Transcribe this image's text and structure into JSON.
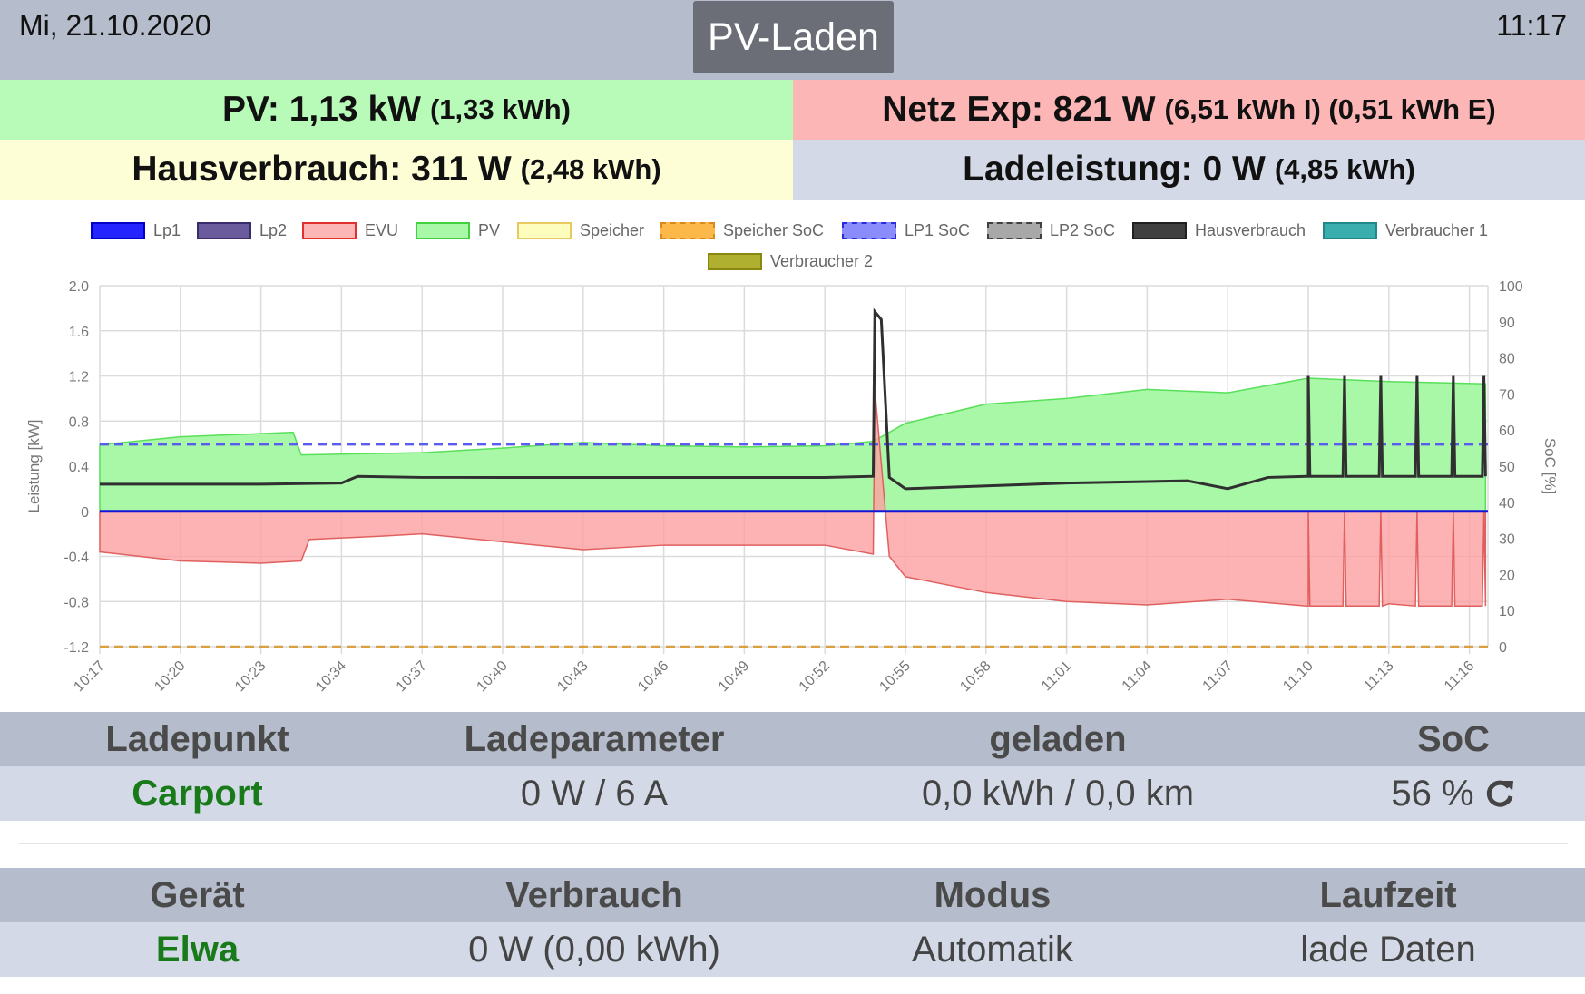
{
  "header": {
    "date": "Mi, 21.10.2020",
    "time": "11:17",
    "mode_button": "PV-Laden"
  },
  "summary": {
    "pv": {
      "label": "PV: 1,13 kW",
      "detail": "(1,33 kWh)",
      "color": "#b8fbb8"
    },
    "grid": {
      "label": "Netz Exp: 821 W",
      "detail": "(6,51 kWh I) (0,51 kWh E)",
      "color": "#fdb6b6"
    },
    "house": {
      "label": "Hausverbrauch: 311 W",
      "detail": "(2,48 kWh)",
      "color": "#fdfdd6"
    },
    "charge": {
      "label": "Ladeleistung: 0 W",
      "detail": "(4,85 kWh)",
      "color": "#d3d9e6"
    }
  },
  "chart_data": {
    "type": "area",
    "legend": [
      {
        "name": "Lp1",
        "color": "#2424ff",
        "border": "#0000c8",
        "dash": false
      },
      {
        "name": "Lp2",
        "color": "#6a5c9c",
        "border": "#3a2c6c",
        "dash": false
      },
      {
        "name": "EVU",
        "color": "#fdb6b6",
        "border": "#e03030",
        "dash": false
      },
      {
        "name": "PV",
        "color": "#a8f8a8",
        "border": "#40d040",
        "dash": false
      },
      {
        "name": "Speicher",
        "color": "#fdfdbe",
        "border": "#e8c860",
        "dash": false
      },
      {
        "name": "Speicher SoC",
        "color": "#fdb84a",
        "border": "#d88a20",
        "dash": true
      },
      {
        "name": "LP1 SoC",
        "color": "#8a8cfc",
        "border": "#2a2ce0",
        "dash": true
      },
      {
        "name": "LP2 SoC",
        "color": "#a8a8a8",
        "border": "#404040",
        "dash": true
      },
      {
        "name": "Hausverbrauch",
        "color": "#404040",
        "border": "#202020",
        "dash": false
      },
      {
        "name": "Verbraucher 1",
        "color": "#3aaeae",
        "border": "#208888",
        "dash": false
      },
      {
        "name": "Verbraucher 2",
        "color": "#b0b030",
        "border": "#888810",
        "dash": false
      }
    ],
    "ylabel_left": "Leistung [kW]",
    "ylabel_right": "SoC [%]",
    "ylim_left": [
      -1.2,
      2.0
    ],
    "yticks_left": [
      "2.0",
      "1.6",
      "1.2",
      "0.8",
      "0.4",
      "0",
      "-0.4",
      "-0.8",
      "-1.2"
    ],
    "ylim_right": [
      0,
      100
    ],
    "yticks_right": [
      "100",
      "90",
      "80",
      "70",
      "60",
      "50",
      "40",
      "30",
      "20",
      "10",
      "0"
    ],
    "xticks": [
      "10:17",
      "10:20",
      "10:23",
      "10:34",
      "10:37",
      "10:40",
      "10:43",
      "10:46",
      "10:49",
      "10:52",
      "10:55",
      "10:58",
      "11:01",
      "11:04",
      "11:07",
      "11:10",
      "11:13",
      "11:16"
    ],
    "x_range_ticks": [
      0,
      17.2
    ],
    "series": [
      {
        "name": "PV",
        "points": [
          [
            0,
            0.59
          ],
          [
            1,
            0.66
          ],
          [
            2.4,
            0.7
          ],
          [
            2.5,
            0.5
          ],
          [
            4,
            0.52
          ],
          [
            5,
            0.56
          ],
          [
            6,
            0.61
          ],
          [
            7,
            0.58
          ],
          [
            8,
            0.57
          ],
          [
            9,
            0.58
          ],
          [
            9.6,
            0.62
          ],
          [
            10,
            0.78
          ],
          [
            11,
            0.95
          ],
          [
            12,
            1.0
          ],
          [
            13,
            1.08
          ],
          [
            14,
            1.05
          ],
          [
            15,
            1.18
          ],
          [
            16,
            1.15
          ],
          [
            17.2,
            1.13
          ]
        ]
      },
      {
        "name": "EVU",
        "points": [
          [
            0,
            -0.36
          ],
          [
            1,
            -0.44
          ],
          [
            2,
            -0.46
          ],
          [
            2.5,
            -0.44
          ],
          [
            2.6,
            -0.25
          ],
          [
            3.5,
            -0.22
          ],
          [
            4,
            -0.2
          ],
          [
            5,
            -0.27
          ],
          [
            6,
            -0.34
          ],
          [
            7,
            -0.3
          ],
          [
            8,
            -0.3
          ],
          [
            9,
            -0.3
          ],
          [
            9.6,
            -0.38
          ],
          [
            9.62,
            1.08
          ],
          [
            9.8,
            -0.4
          ],
          [
            10,
            -0.58
          ],
          [
            11,
            -0.72
          ],
          [
            12,
            -0.8
          ],
          [
            13,
            -0.83
          ],
          [
            14,
            -0.78
          ],
          [
            15,
            -0.84
          ],
          [
            16,
            -0.82
          ],
          [
            17.2,
            -0.81
          ]
        ]
      },
      {
        "name": "Hausverbrauch",
        "points": [
          [
            0,
            0.24
          ],
          [
            2,
            0.24
          ],
          [
            3,
            0.25
          ],
          [
            3.2,
            0.31
          ],
          [
            4,
            0.3
          ],
          [
            5,
            0.3
          ],
          [
            6,
            0.3
          ],
          [
            8,
            0.3
          ],
          [
            9,
            0.3
          ],
          [
            9.6,
            0.31
          ],
          [
            9.62,
            1.77
          ],
          [
            9.7,
            1.7
          ],
          [
            9.8,
            0.3
          ],
          [
            10,
            0.2
          ],
          [
            12,
            0.25
          ],
          [
            13.5,
            0.27
          ],
          [
            14,
            0.2
          ],
          [
            14.5,
            0.3
          ],
          [
            15,
            0.31
          ],
          [
            17.2,
            0.31
          ]
        ]
      },
      {
        "name": "LP1 SoC",
        "soc": 56
      },
      {
        "name": "Speicher SoC",
        "soc": 0
      }
    ],
    "spikes": [
      15.0,
      15.45,
      15.9,
      16.35,
      16.8,
      17.18
    ],
    "grid": true,
    "legend_position": "top"
  },
  "chargepoint_table": {
    "headers": [
      "Ladepunkt",
      "Ladeparameter",
      "geladen",
      "SoC"
    ],
    "row": {
      "name": "Carport",
      "params": "0 W / 6 A",
      "charged": "0,0 kWh / 0,0 km",
      "soc": "56 %"
    }
  },
  "device_table": {
    "headers": [
      "Gerät",
      "Verbrauch",
      "Modus",
      "Laufzeit"
    ],
    "row": {
      "name": "Elwa",
      "consumption": "0 W (0,00 kWh)",
      "mode": "Automatik",
      "runtime": "lade Daten"
    }
  },
  "colors": {
    "header_bg": "#b5bccb",
    "row_bg": "#d3d9e6",
    "name_green": "#187a18"
  }
}
